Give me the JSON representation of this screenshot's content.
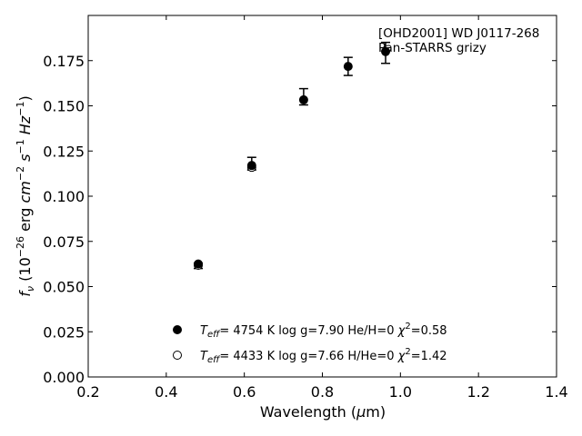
{
  "chart_data": {
    "type": "scatter",
    "title": "",
    "xlabel_main": "Wavelength (",
    "xlabel_mu": "μ",
    "xlabel_tail": "m)",
    "ylabel": {
      "f": "f",
      "nu": "ν",
      "open": " (10",
      "exp1": "−26",
      "erg": " erg ",
      "cm": "cm",
      "exp2": "−2",
      "s": " s",
      "exp3": "−1",
      "hz": " Hz",
      "exp4": "−1",
      "close": ")"
    },
    "xlim": [
      0.2,
      1.4
    ],
    "ylim": [
      0.0,
      0.2
    ],
    "x_ticks": [
      0.2,
      0.4,
      0.6,
      0.8,
      1.0,
      1.2,
      1.4
    ],
    "x_tick_labels": [
      "0.2",
      "0.4",
      "0.6",
      "0.8",
      "1.0",
      "1.2",
      "1.4"
    ],
    "y_ticks": [
      0.0,
      0.025,
      0.05,
      0.075,
      0.1,
      0.125,
      0.15,
      0.175
    ],
    "y_tick_labels": [
      "0.000",
      "0.025",
      "0.050",
      "0.075",
      "0.100",
      "0.125",
      "0.150",
      "0.175"
    ],
    "grid": false,
    "annotation": [
      "[OHD2001] WD J0117-268",
      "Pan-STARRS grizy"
    ],
    "observed": {
      "x": [
        0.482,
        0.619,
        0.752,
        0.866,
        0.962
      ],
      "y": [
        0.0615,
        0.118,
        0.155,
        0.1718,
        0.1793
      ],
      "yerr": [
        0.0015,
        0.0035,
        0.0045,
        0.005,
        0.0058
      ]
    },
    "series": [
      {
        "marker": "filled-circle",
        "x": [
          0.482,
          0.619,
          0.752,
          0.866,
          0.962
        ],
        "y": [
          0.0625,
          0.117,
          0.1533,
          0.1718,
          0.18
        ],
        "legend": {
          "t": "T",
          "sub": "eff",
          "eq": "=  4754 K  log g=7.90  He/H=0  ",
          "chi": "χ",
          "sup": "2",
          "val": "=0.58"
        }
      },
      {
        "marker": "open-circle",
        "x": [
          0.482,
          0.619
        ],
        "y": [
          0.0618,
          0.116
        ],
        "legend": {
          "t": "T",
          "sub": "eff",
          "eq": "=  4433 K  log g=7.66  H/He=0  ",
          "chi": "χ",
          "sup": "2",
          "val": "=1.42"
        }
      }
    ],
    "legend_position": "lower-center"
  }
}
